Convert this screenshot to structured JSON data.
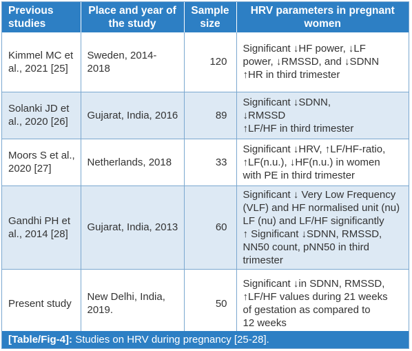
{
  "headers": {
    "col1": "Previous studies",
    "col2": "Place and year of the study",
    "col3": "Sample size",
    "col4": "HRV parameters in pregnant women"
  },
  "rows": [
    {
      "study": "Kimmel MC et al., 2021 [25]",
      "place": "Sweden, 2014-2018",
      "size": "120",
      "params": [
        "Significant ↓HF power, ↓LF",
        "power, ↓RMSSD, and ↓SDNN",
        "↑HR in third trimester"
      ]
    },
    {
      "study": "Solanki JD et al., 2020 [26]",
      "place": "Gujarat, India, 2016",
      "size": "89",
      "params": [
        "Significant ↓SDNN,",
        "↓RMSSD",
        "↑LF/HF in third trimester"
      ]
    },
    {
      "study": "Moors S et al., 2020 [27]",
      "place": "Netherlands, 2018",
      "size": "33",
      "params": [
        "Significant ↓HRV, ↑LF/HF-ratio,",
        "↑LF(n.u.), ↓HF(n.u.) in women",
        "with PE in third trimester"
      ]
    },
    {
      "study": "Gandhi PH et al., 2014 [28]",
      "place": "Gujarat, India, 2013",
      "size": "60",
      "params": [
        "Significant ↓ Very Low Frequency",
        "(VLF) and HF normalised unit (nu)",
        "LF (nu) and LF/HF significantly",
        "↑ Significant ↓SDNN, RMSSD,",
        "NN50 count, pNN50 in third",
        "trimester"
      ]
    },
    {
      "study": "Present study",
      "place": "New Delhi, India, 2019.",
      "size": "50",
      "params": [
        "Significant ↓in SDNN, RMSSD,",
        "↑LF/HF values during 21 weeks",
        "of gestation as compared to",
        "12 weeks"
      ]
    }
  ],
  "caption": {
    "label": "[Table/Fig-4]:",
    "text": " Studies on HRV during pregnancy [25-28]."
  }
}
